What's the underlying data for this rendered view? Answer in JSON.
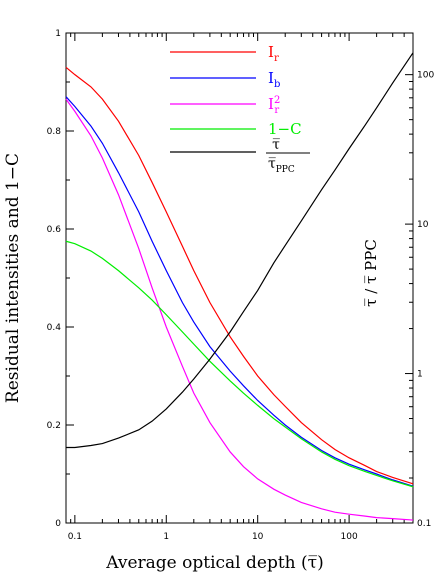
{
  "chart_data": {
    "type": "line",
    "xlabel": "Average optical depth (τ̅)",
    "ylabel": "Residual intensities and 1−C",
    "y2label": "τ̅ / τ̅ PPC",
    "x_scale": "log",
    "xlim": [
      0.08,
      500
    ],
    "ylim": [
      0,
      1
    ],
    "y2_scale": "log",
    "y2lim": [
      0.1,
      190
    ],
    "x_ticks": [
      {
        "value": 0.1,
        "label": "0.1"
      },
      {
        "value": 1,
        "label": "1"
      },
      {
        "value": 10,
        "label": "10"
      },
      {
        "value": 100,
        "label": "100"
      }
    ],
    "y_ticks": [
      {
        "value": 0,
        "label": "0"
      },
      {
        "value": 0.2,
        "label": "0.2"
      },
      {
        "value": 0.4,
        "label": "0.4"
      },
      {
        "value": 0.6,
        "label": "0.6"
      },
      {
        "value": 0.8,
        "label": "0.8"
      },
      {
        "value": 1,
        "label": "1"
      }
    ],
    "y2_ticks": [
      {
        "value": 0.1,
        "label": "0.1"
      },
      {
        "value": 1,
        "label": "1"
      },
      {
        "value": 10,
        "label": "10"
      },
      {
        "value": 100,
        "label": "100"
      }
    ],
    "grid": false,
    "legend_position": "top-center",
    "series": [
      {
        "name": "I_r",
        "color": "#ff0000",
        "axis": "left",
        "points": [
          [
            0.08,
            0.93
          ],
          [
            0.1,
            0.915
          ],
          [
            0.15,
            0.89
          ],
          [
            0.2,
            0.865
          ],
          [
            0.3,
            0.82
          ],
          [
            0.5,
            0.75
          ],
          [
            0.7,
            0.695
          ],
          [
            1,
            0.635
          ],
          [
            1.5,
            0.565
          ],
          [
            2,
            0.515
          ],
          [
            3,
            0.45
          ],
          [
            5,
            0.38
          ],
          [
            7,
            0.34
          ],
          [
            10,
            0.3
          ],
          [
            15,
            0.262
          ],
          [
            20,
            0.238
          ],
          [
            30,
            0.205
          ],
          [
            50,
            0.17
          ],
          [
            70,
            0.15
          ],
          [
            100,
            0.133
          ],
          [
            150,
            0.117
          ],
          [
            200,
            0.105
          ],
          [
            300,
            0.093
          ],
          [
            500,
            0.08
          ]
        ]
      },
      {
        "name": "I_b",
        "color": "#0000ff",
        "axis": "left",
        "points": [
          [
            0.08,
            0.87
          ],
          [
            0.1,
            0.85
          ],
          [
            0.15,
            0.81
          ],
          [
            0.2,
            0.775
          ],
          [
            0.3,
            0.715
          ],
          [
            0.5,
            0.635
          ],
          [
            0.7,
            0.575
          ],
          [
            1,
            0.515
          ],
          [
            1.5,
            0.45
          ],
          [
            2,
            0.41
          ],
          [
            3,
            0.36
          ],
          [
            5,
            0.31
          ],
          [
            7,
            0.28
          ],
          [
            10,
            0.25
          ],
          [
            15,
            0.22
          ],
          [
            20,
            0.2
          ],
          [
            30,
            0.175
          ],
          [
            50,
            0.148
          ],
          [
            70,
            0.133
          ],
          [
            100,
            0.12
          ],
          [
            150,
            0.108
          ],
          [
            200,
            0.1
          ],
          [
            300,
            0.088
          ],
          [
            500,
            0.075
          ]
        ]
      },
      {
        "name": "I_r^2",
        "color": "#ff00ff",
        "axis": "left",
        "points": [
          [
            0.08,
            0.865
          ],
          [
            0.1,
            0.84
          ],
          [
            0.15,
            0.79
          ],
          [
            0.2,
            0.745
          ],
          [
            0.3,
            0.67
          ],
          [
            0.5,
            0.56
          ],
          [
            0.7,
            0.48
          ],
          [
            1,
            0.4
          ],
          [
            1.5,
            0.32
          ],
          [
            2,
            0.265
          ],
          [
            3,
            0.205
          ],
          [
            5,
            0.145
          ],
          [
            7,
            0.115
          ],
          [
            10,
            0.09
          ],
          [
            15,
            0.069
          ],
          [
            20,
            0.057
          ],
          [
            30,
            0.042
          ],
          [
            50,
            0.029
          ],
          [
            70,
            0.022
          ],
          [
            100,
            0.018
          ],
          [
            150,
            0.014
          ],
          [
            200,
            0.011
          ],
          [
            300,
            0.009
          ],
          [
            500,
            0.006
          ]
        ]
      },
      {
        "name": "1−C",
        "color": "#00ee00",
        "axis": "left",
        "points": [
          [
            0.08,
            0.575
          ],
          [
            0.1,
            0.57
          ],
          [
            0.15,
            0.555
          ],
          [
            0.2,
            0.54
          ],
          [
            0.3,
            0.515
          ],
          [
            0.5,
            0.48
          ],
          [
            0.7,
            0.455
          ],
          [
            1,
            0.425
          ],
          [
            1.5,
            0.39
          ],
          [
            2,
            0.365
          ],
          [
            3,
            0.33
          ],
          [
            5,
            0.29
          ],
          [
            7,
            0.265
          ],
          [
            10,
            0.24
          ],
          [
            15,
            0.213
          ],
          [
            20,
            0.196
          ],
          [
            30,
            0.172
          ],
          [
            50,
            0.145
          ],
          [
            70,
            0.13
          ],
          [
            100,
            0.117
          ],
          [
            150,
            0.105
          ],
          [
            200,
            0.097
          ],
          [
            300,
            0.086
          ],
          [
            500,
            0.074
          ]
        ]
      },
      {
        "name": "τ̅ / τ̅ PPC",
        "color": "#000000",
        "axis": "right",
        "points": [
          [
            0.08,
            0.32
          ],
          [
            0.1,
            0.32
          ],
          [
            0.15,
            0.33
          ],
          [
            0.2,
            0.34
          ],
          [
            0.3,
            0.37
          ],
          [
            0.5,
            0.42
          ],
          [
            0.7,
            0.48
          ],
          [
            1,
            0.58
          ],
          [
            1.5,
            0.75
          ],
          [
            2,
            0.92
          ],
          [
            3,
            1.25
          ],
          [
            5,
            1.9
          ],
          [
            7,
            2.6
          ],
          [
            10,
            3.6
          ],
          [
            15,
            5.5
          ],
          [
            20,
            7.2
          ],
          [
            30,
            10.5
          ],
          [
            50,
            17
          ],
          [
            70,
            23
          ],
          [
            100,
            32
          ],
          [
            150,
            46
          ],
          [
            200,
            60
          ],
          [
            300,
            88
          ],
          [
            500,
            140
          ]
        ]
      }
    ]
  }
}
